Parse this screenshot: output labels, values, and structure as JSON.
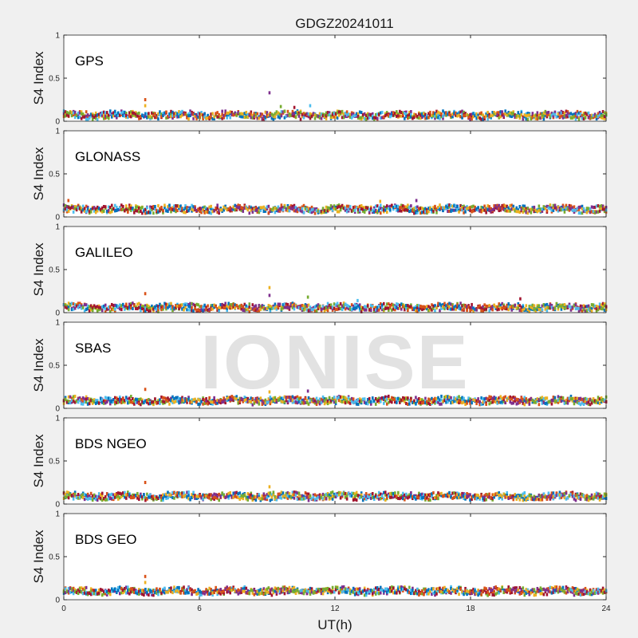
{
  "chart_data": {
    "type": "scatter",
    "title": "GDGZ20241011",
    "xlabel": "UT(h)",
    "ylabel": "S4 Index",
    "xlim": [
      0,
      24
    ],
    "ylim": [
      0,
      1
    ],
    "x_ticks": [
      "0",
      "6",
      "12",
      "18",
      "24"
    ],
    "y_ticks": [
      "0",
      "0.5",
      "1"
    ],
    "watermark": "IONISE",
    "series_colors": [
      "#0072BD",
      "#D95319",
      "#EDB120",
      "#7E2F8E",
      "#77AC30",
      "#4DBEEE",
      "#A2142F"
    ],
    "panels": [
      {
        "name": "GPS",
        "baseline": 0.07,
        "spikes": [
          {
            "x": 3.6,
            "y": 0.25
          },
          {
            "x": 3.6,
            "y": 0.18
          },
          {
            "x": 9.1,
            "y": 0.33
          },
          {
            "x": 9.6,
            "y": 0.17
          },
          {
            "x": 10.9,
            "y": 0.18
          },
          {
            "x": 10.2,
            "y": 0.16
          }
        ]
      },
      {
        "name": "GLONASS",
        "baseline": 0.09,
        "spikes": [
          {
            "x": 0.2,
            "y": 0.19
          },
          {
            "x": 14.0,
            "y": 0.18
          },
          {
            "x": 15.6,
            "y": 0.19
          }
        ]
      },
      {
        "name": "GALILEO",
        "baseline": 0.06,
        "spikes": [
          {
            "x": 3.6,
            "y": 0.22
          },
          {
            "x": 9.1,
            "y": 0.29
          },
          {
            "x": 9.1,
            "y": 0.2
          },
          {
            "x": 10.8,
            "y": 0.18
          },
          {
            "x": 13.0,
            "y": 0.14
          },
          {
            "x": 20.2,
            "y": 0.16
          }
        ]
      },
      {
        "name": "SBAS",
        "baseline": 0.09,
        "spikes": [
          {
            "x": 3.6,
            "y": 0.22
          },
          {
            "x": 9.1,
            "y": 0.19
          },
          {
            "x": 10.8,
            "y": 0.2
          }
        ]
      },
      {
        "name": "BDS NGEO",
        "baseline": 0.09,
        "spikes": [
          {
            "x": 3.6,
            "y": 0.25
          },
          {
            "x": 9.1,
            "y": 0.2
          }
        ]
      },
      {
        "name": "BDS GEO",
        "baseline": 0.1,
        "spikes": [
          {
            "x": 3.6,
            "y": 0.27
          },
          {
            "x": 3.6,
            "y": 0.2
          }
        ]
      }
    ]
  }
}
